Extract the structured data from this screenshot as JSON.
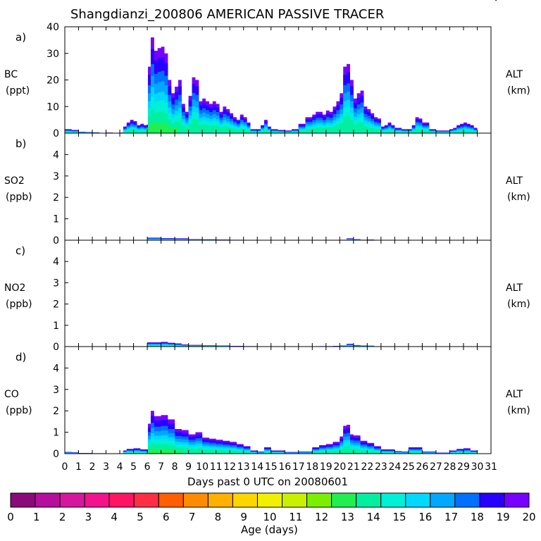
{
  "header": {
    "title": "Shangdianzi_200806 AMERICAN PASSIVE TRACER",
    "corner_mark": "V"
  },
  "chart_data": [
    {
      "type": "area",
      "panel_label": "a)",
      "species": "BC",
      "unit": "(ppt)",
      "right_label": "ALT",
      "right_unit": "(km)",
      "ylim": [
        0,
        40
      ],
      "yticks": [
        "0",
        "10",
        "20",
        "30",
        "40"
      ],
      "x": [
        0,
        0.5,
        1,
        1.5,
        2,
        2.5,
        3,
        3.5,
        4,
        4.25,
        4.5,
        4.75,
        5,
        5.25,
        5.5,
        5.75,
        5.95,
        6.05,
        6.25,
        6.5,
        6.75,
        7,
        7.25,
        7.5,
        7.75,
        8,
        8.25,
        8.5,
        8.75,
        9,
        9.25,
        9.5,
        9.75,
        10,
        10.25,
        10.5,
        10.75,
        11,
        11.25,
        11.5,
        11.75,
        12,
        12.25,
        12.5,
        12.75,
        13,
        13.25,
        13.5,
        13.75,
        14,
        14.25,
        14.5,
        14.75,
        15,
        15.5,
        16,
        16.5,
        17,
        17.5,
        18,
        18.25,
        18.5,
        18.75,
        19,
        19.25,
        19.5,
        19.75,
        20,
        20.25,
        20.5,
        20.75,
        21,
        21.25,
        21.5,
        21.75,
        22,
        22.25,
        22.5,
        22.75,
        23,
        23.25,
        23.5,
        23.75,
        24,
        24.5,
        25,
        25.25,
        25.5,
        25.75,
        26,
        26.5,
        27,
        27.5,
        28,
        28.25,
        28.5,
        28.75,
        29,
        29.25,
        29.5,
        29.75,
        30
      ],
      "values": [
        1.5,
        1.2,
        0.5,
        0.4,
        0.3,
        0.1,
        0.2,
        0.1,
        0.2,
        2.5,
        4,
        5,
        4.5,
        3,
        3.5,
        3,
        3.2,
        25,
        36,
        31,
        32,
        32.5,
        30,
        20,
        15,
        17.5,
        20,
        11,
        8,
        14,
        21,
        20,
        12,
        13,
        12,
        11,
        12,
        11,
        8,
        10,
        9,
        7.5,
        6,
        5,
        7,
        6,
        4,
        1.5,
        1.5,
        1.5,
        3,
        5,
        2.5,
        1.5,
        1.2,
        1,
        1.5,
        3.5,
        6,
        7,
        8,
        8,
        7,
        8.5,
        8,
        10,
        12,
        15,
        25,
        26,
        20,
        13,
        15,
        16,
        10,
        9,
        7.5,
        6,
        5.5,
        2.5,
        3,
        4,
        3,
        2,
        1.5,
        1.5,
        3,
        6,
        5.5,
        4,
        1.5,
        1,
        1,
        1.5,
        2,
        3,
        3.5,
        4,
        3.5,
        3,
        2,
        1
      ],
      "series_note": "stacked by age bins 0-20 days; color scale shows age"
    },
    {
      "type": "area",
      "panel_label": "b)",
      "species": "SO2",
      "unit": "(ppb)",
      "right_label": "ALT",
      "right_unit": "(km)",
      "ylim": [
        0,
        5
      ],
      "yticks": [
        "0",
        "1",
        "2",
        "3",
        "4"
      ],
      "x": [
        0,
        5.9,
        6,
        6.5,
        7,
        8,
        9,
        10,
        11,
        12,
        13,
        14,
        19.5,
        20,
        20.5,
        21,
        21.5,
        22,
        22.5,
        30
      ],
      "values": [
        0,
        0,
        0.12,
        0.12,
        0.1,
        0.09,
        0.05,
        0.04,
        0.03,
        0.02,
        0.01,
        0,
        0,
        0.02,
        0.09,
        0.05,
        0.02,
        0.03,
        0,
        0
      ]
    },
    {
      "type": "area",
      "panel_label": "c)",
      "species": "NO2",
      "unit": "(ppb)",
      "right_label": "ALT",
      "right_unit": "(km)",
      "ylim": [
        0,
        5
      ],
      "yticks": [
        "0",
        "1",
        "2",
        "3",
        "4"
      ],
      "x": [
        0,
        5.9,
        6,
        6.5,
        7,
        7.5,
        8,
        8.5,
        9,
        10,
        11,
        12,
        13,
        14,
        18,
        18.5,
        19.5,
        20,
        20.5,
        21,
        21.5,
        22,
        22.5,
        30
      ],
      "values": [
        0,
        0,
        0.2,
        0.2,
        0.22,
        0.18,
        0.15,
        0.1,
        0.08,
        0.06,
        0.05,
        0.03,
        0.02,
        0,
        0,
        0.02,
        0.03,
        0.05,
        0.13,
        0.07,
        0.05,
        0.04,
        0,
        0
      ]
    },
    {
      "type": "area",
      "panel_label": "d)",
      "species": "CO",
      "unit": "(ppb)",
      "right_label": "ALT",
      "right_unit": "(km)",
      "ylim": [
        0,
        5
      ],
      "yticks": [
        "0",
        "1",
        "2",
        "3",
        "4"
      ],
      "x": [
        0,
        0.5,
        1,
        2,
        3,
        4,
        4.25,
        4.5,
        5,
        5.5,
        5.95,
        6.05,
        6.25,
        6.5,
        7,
        7.5,
        8,
        8.5,
        9,
        9.5,
        10,
        10.5,
        11,
        11.5,
        12,
        12.5,
        13,
        13.5,
        14,
        14.5,
        15,
        16,
        17,
        18,
        18.5,
        19,
        19.5,
        20,
        20.25,
        20.5,
        20.75,
        21,
        21.5,
        22,
        22.5,
        23,
        24,
        24.5,
        25,
        25.5,
        26,
        27,
        28,
        28.5,
        29,
        29.5,
        30
      ],
      "values": [
        0.08,
        0.06,
        0.03,
        0.02,
        0.01,
        0.01,
        0.15,
        0.22,
        0.25,
        0.2,
        0.2,
        1.4,
        2.0,
        1.75,
        1.8,
        1.6,
        1.15,
        1.1,
        0.9,
        1.0,
        0.75,
        0.7,
        0.65,
        0.6,
        0.55,
        0.45,
        0.35,
        0.15,
        0.1,
        0.3,
        0.15,
        0.08,
        0.1,
        0.3,
        0.4,
        0.45,
        0.55,
        0.8,
        1.3,
        1.35,
        0.9,
        0.85,
        0.6,
        0.5,
        0.35,
        0.2,
        0.12,
        0.1,
        0.3,
        0.3,
        0.1,
        0.05,
        0.15,
        0.22,
        0.25,
        0.15,
        0.05
      ]
    }
  ],
  "xaxis": {
    "ticks": [
      "0",
      "1",
      "2",
      "3",
      "4",
      "5",
      "6",
      "7",
      "8",
      "9",
      "10",
      "11",
      "12",
      "13",
      "14",
      "15",
      "16",
      "17",
      "18",
      "19",
      "20",
      "21",
      "22",
      "23",
      "24",
      "25",
      "26",
      "27",
      "28",
      "29",
      "30",
      "31"
    ],
    "xlim": [
      0,
      31
    ],
    "label": "Days past 0 UTC on 20080601"
  },
  "colorbar": {
    "label": "Age (days)",
    "ticks": [
      "0",
      "1",
      "2",
      "3",
      "4",
      "5",
      "6",
      "7",
      "8",
      "9",
      "10",
      "11",
      "12",
      "13",
      "14",
      "15",
      "16",
      "17",
      "18",
      "19",
      "20"
    ],
    "colors": [
      "#8B0A7A",
      "#B5109B",
      "#D4179E",
      "#F2128C",
      "#FF1464",
      "#FF2E45",
      "#FF5F00",
      "#FF8C00",
      "#FFB000",
      "#FFD500",
      "#F0F000",
      "#C8F000",
      "#7AF000",
      "#22EE50",
      "#00F0A0",
      "#00F0D8",
      "#00D8FF",
      "#00A8FF",
      "#0070FF",
      "#2800FF",
      "#7800FF"
    ]
  },
  "stack_colors": [
    "#7800FF",
    "#2800FF",
    "#0070FF",
    "#00A8FF",
    "#00D8FF",
    "#00F0D8",
    "#00F0A0",
    "#22EE50"
  ]
}
